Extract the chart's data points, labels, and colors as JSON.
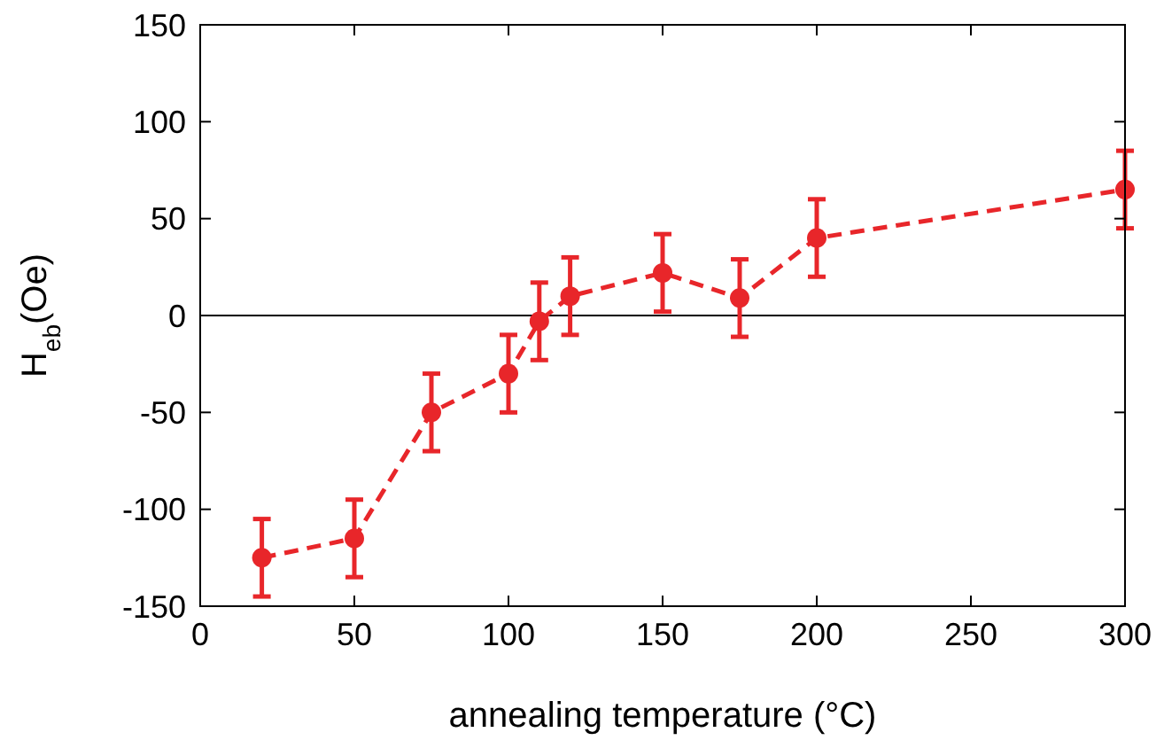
{
  "chart_data": {
    "type": "line",
    "xlabel": "annealing temperature (°C)",
    "ylabel": "H$_{eb}$(Oe)",
    "x": [
      20,
      50,
      75,
      100,
      110,
      120,
      150,
      175,
      200,
      300
    ],
    "series": [
      {
        "color": "#e8262a",
        "values": [
          -125,
          -115,
          -50,
          -30,
          -3,
          10,
          22,
          9,
          40,
          65
        ],
        "errors": [
          20,
          20,
          20,
          20,
          20,
          20,
          20,
          20,
          20,
          20
        ]
      }
    ],
    "xlim": [
      0,
      300
    ],
    "xticks": [
      0,
      50,
      100,
      150,
      200,
      250,
      300
    ],
    "ylim": [
      -150,
      150
    ],
    "yticks": [
      -150,
      -100,
      -50,
      0,
      50,
      100,
      150
    ],
    "ref_lines": [
      {
        "axis": "y",
        "value": 0,
        "color": "#000000"
      }
    ],
    "marker": "circle",
    "line_style": "dashed",
    "grid": false
  }
}
